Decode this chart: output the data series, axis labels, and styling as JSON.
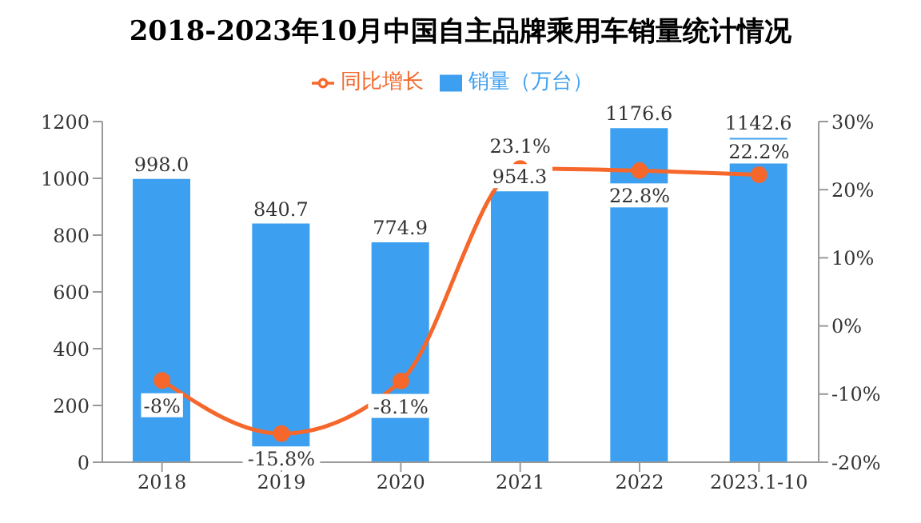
{
  "chart_data": {
    "type": "bar",
    "title": "2018-2023年10月中国自主品牌乘用车销量统计情况",
    "categories": [
      "2018",
      "2019",
      "2020",
      "2021",
      "2022",
      "2023.1-10"
    ],
    "series": [
      {
        "name": "销量（万台）",
        "color": "#3d9ff0",
        "values": [
          998.0,
          840.7,
          774.9,
          954.3,
          1176.6,
          1142.6
        ],
        "value_labels": [
          "998.0",
          "840.7",
          "774.9",
          "954.3",
          "1176.6",
          "1142.6"
        ]
      },
      {
        "name": "同比增长",
        "type": "line",
        "axis": "y2",
        "color": "#f5672a",
        "marker": "circle",
        "values": [
          -8,
          -15.8,
          -8.1,
          23.1,
          22.8,
          22.2
        ],
        "value_labels": [
          "-8%",
          "-15.8%",
          "-8.1%",
          "23.1%",
          "22.8%",
          "22.2%"
        ]
      }
    ],
    "ylim": [
      0,
      1200
    ],
    "yticks": [
      0,
      200,
      400,
      600,
      800,
      1000,
      1200
    ],
    "y2lim": [
      -20,
      30
    ],
    "y2ticks": [
      {
        "value": -20,
        "label": "-20%"
      },
      {
        "value": -10,
        "label": "-10%"
      },
      {
        "value": 0,
        "label": "0%"
      },
      {
        "value": 10,
        "label": "10%"
      },
      {
        "value": 20,
        "label": "20%"
      },
      {
        "value": 30,
        "label": "30%"
      }
    ],
    "grid": false,
    "legend": "top"
  }
}
